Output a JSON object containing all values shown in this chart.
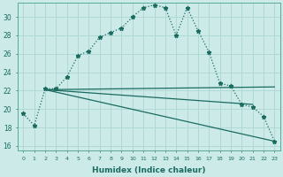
{
  "xlabel": "Humidex (Indice chaleur)",
  "bg_color": "#cceae8",
  "grid_color": "#b0d8d4",
  "line_color": "#1a6b60",
  "x_ticks": [
    0,
    1,
    2,
    3,
    4,
    5,
    6,
    7,
    8,
    9,
    10,
    11,
    12,
    13,
    14,
    15,
    16,
    17,
    18,
    19,
    20,
    21,
    22,
    23
  ],
  "ylim": [
    15.5,
    31.5
  ],
  "yticks": [
    16,
    18,
    20,
    22,
    24,
    26,
    28,
    30
  ],
  "series1_x": [
    0,
    1,
    2,
    3,
    4,
    5,
    6,
    7,
    8,
    9,
    10,
    11,
    12,
    13,
    14,
    15,
    16,
    17,
    18,
    19,
    20,
    21,
    22,
    23
  ],
  "series1_y": [
    19.5,
    18.2,
    22.2,
    22.2,
    23.5,
    25.8,
    26.3,
    27.8,
    28.3,
    28.8,
    30.0,
    31.0,
    31.3,
    31.0,
    28.0,
    31.0,
    28.5,
    26.2,
    22.8,
    22.5,
    20.5,
    20.2,
    19.2,
    16.5
  ],
  "series2_x": [
    2,
    23
  ],
  "series2_y": [
    22.1,
    22.4
  ],
  "series3_x": [
    2,
    21
  ],
  "series3_y": [
    22.1,
    20.5
  ],
  "series4_x": [
    2,
    23
  ],
  "series4_y": [
    22.1,
    16.5
  ]
}
